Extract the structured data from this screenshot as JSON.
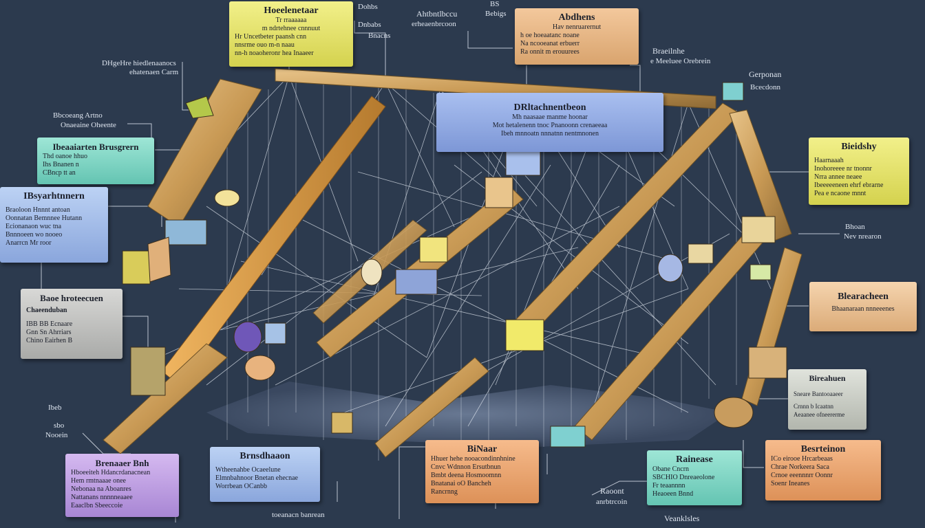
{
  "cards": [
    {
      "id": "c1",
      "title": "Hoeelenetaar",
      "lines": [
        "Tr rraaaaaa",
        "m  ndrtehnee cnnnuut",
        "Hr  Uncetbeter  paansh cnn",
        "nnsrme ouo m-n  naau",
        "nn-h noaoheronr  hea Inaaeer"
      ]
    },
    {
      "id": "c2",
      "title": "Abdhens",
      "lines": [
        "Hav   nenruarernut",
        "h oe  hoeaatanc  noane",
        "Na  ncooeanat erbuerr",
        "Ra  onnit m erouurees"
      ]
    },
    {
      "id": "c3",
      "title": "DRltachnentbeon",
      "lines": [
        "Mh  naasaae manme hoonar",
        "Mot  hetalenenn  tnoc Pnanoonn  crenaeeaa",
        "Ibeh mnnoatn  nnnatnn nentmnonen"
      ]
    },
    {
      "id": "c4",
      "title": "Ibeaaiarten  Brusgrern",
      "lines": [
        "Thd  oanoe  hhuo",
        "Ihs  Bnanen  n",
        "CBncp  tt  an"
      ]
    },
    {
      "id": "c5",
      "title": "IBsyarhtnnern",
      "lines": [
        "Braoloon  Hnnnt antoan",
        "Oonnatan  Bemnnee Hutann",
        "Ecionanaon  wuc  tna",
        "Bnnnoeen  wo  nooeo",
        "Anarrcn  Mr  roor"
      ]
    },
    {
      "id": "c6",
      "title": "Bieidshy",
      "lines": [
        "Haarnaaah",
        "Inohoreeee  nr tnonnr",
        "Nrra  annee  neaee",
        "Ibeeeeeneen  ehrf ebrarne",
        "Pea  e  ncaone mnnt"
      ]
    },
    {
      "id": "c7",
      "title": "Baoe  hroteecuen",
      "lines": [
        "Chaeenduban",
        "IBB  BB  Ecnaare",
        "Gnn  Sn  Ahrriars",
        "Chino  Eairhen  B"
      ]
    },
    {
      "id": "c8",
      "title": "Blearacheen",
      "lines": [
        "Bhaanaraan  nnneeenes"
      ]
    },
    {
      "id": "c9",
      "title": "Bireahuen",
      "lines": [
        "Sneare  Bantooaaeer",
        "Crnnn  b  Icaatnn",
        "Aeaanee ofneererme"
      ]
    },
    {
      "id": "c10",
      "title": "Brenaaer  Bnh",
      "lines": [
        "Hboeeiteh  Hdancrdanacnean",
        "Hem  rmtnaaae  onee",
        "Nebonaa  na  Aboanres",
        "Nattanans  nnnnneaaee",
        "Eaaclbn   Sbeeccoie"
      ]
    },
    {
      "id": "c11",
      "title": "Brnsdhaaon",
      "lines": [
        "Wtheenahbe  Ocaeelune",
        "Elmnbahnoor  Bnetan  ehecnae",
        "Worrbean  OCanbb"
      ]
    },
    {
      "id": "c12",
      "title": "BiNaar",
      "lines": [
        "Hhuer  hehe nooacondinnhnine",
        "Cnvc  Wdnnon  Ersutbnun",
        "Bmbt  deena  Hosmoomnn",
        "Bnatanai  oO  Bancheh",
        "Rancrnng"
      ]
    },
    {
      "id": "c13",
      "title": "Rainease",
      "lines": [
        "Obane  Cncrn",
        "SBCHIO  Dnreaeolone",
        "Fr  teaannnn",
        "Heaoeen  Bnnd"
      ]
    },
    {
      "id": "c14",
      "title": "Besrteinon",
      "lines": [
        "ICo  eirooe  Hrcarbeaas",
        "Chrae  Norkeera  Saca",
        "Crnoe eeennnrr Oonnr",
        "Soenr  Ineanes"
      ]
    }
  ],
  "labels": [
    {
      "id": "l1",
      "text": "Dohbs"
    },
    {
      "id": "l2",
      "text": "Dnbabs"
    },
    {
      "id": "l3",
      "text": "Bnacns"
    },
    {
      "id": "l4",
      "text": "Ahtbntlbccu"
    },
    {
      "id": "l5",
      "text": "erheaenbrcoon"
    },
    {
      "id": "l6",
      "text": "BS"
    },
    {
      "id": "l7",
      "text": "Bebigs"
    },
    {
      "id": "l8",
      "text": "DHgeHre  hiedlenaanocs"
    },
    {
      "id": "l9",
      "text": "ehatenaen  Carm"
    },
    {
      "id": "l10",
      "text": "Bbcoeang  Artno"
    },
    {
      "id": "l11",
      "text": "Onaeaine  Oheente"
    },
    {
      "id": "l12",
      "text": "Braeilnhe"
    },
    {
      "id": "l13",
      "text": "e  Meeluee  Orebrein"
    },
    {
      "id": "l14",
      "text": "Gerponan"
    },
    {
      "id": "l15",
      "text": "Bcecdonn"
    },
    {
      "id": "l16",
      "text": "Bhoan"
    },
    {
      "id": "l17",
      "text": "Nev   nrearon"
    },
    {
      "id": "l18",
      "text": "Ibeb"
    },
    {
      "id": "l19",
      "text": "sbo"
    },
    {
      "id": "l20",
      "text": "Nooein"
    },
    {
      "id": "l21",
      "text": "Raoont"
    },
    {
      "id": "l22",
      "text": "anrbtrcoin"
    },
    {
      "id": "l23",
      "text": "Veanklsles"
    },
    {
      "id": "l24",
      "text": "toeanacn  banrean"
    }
  ]
}
